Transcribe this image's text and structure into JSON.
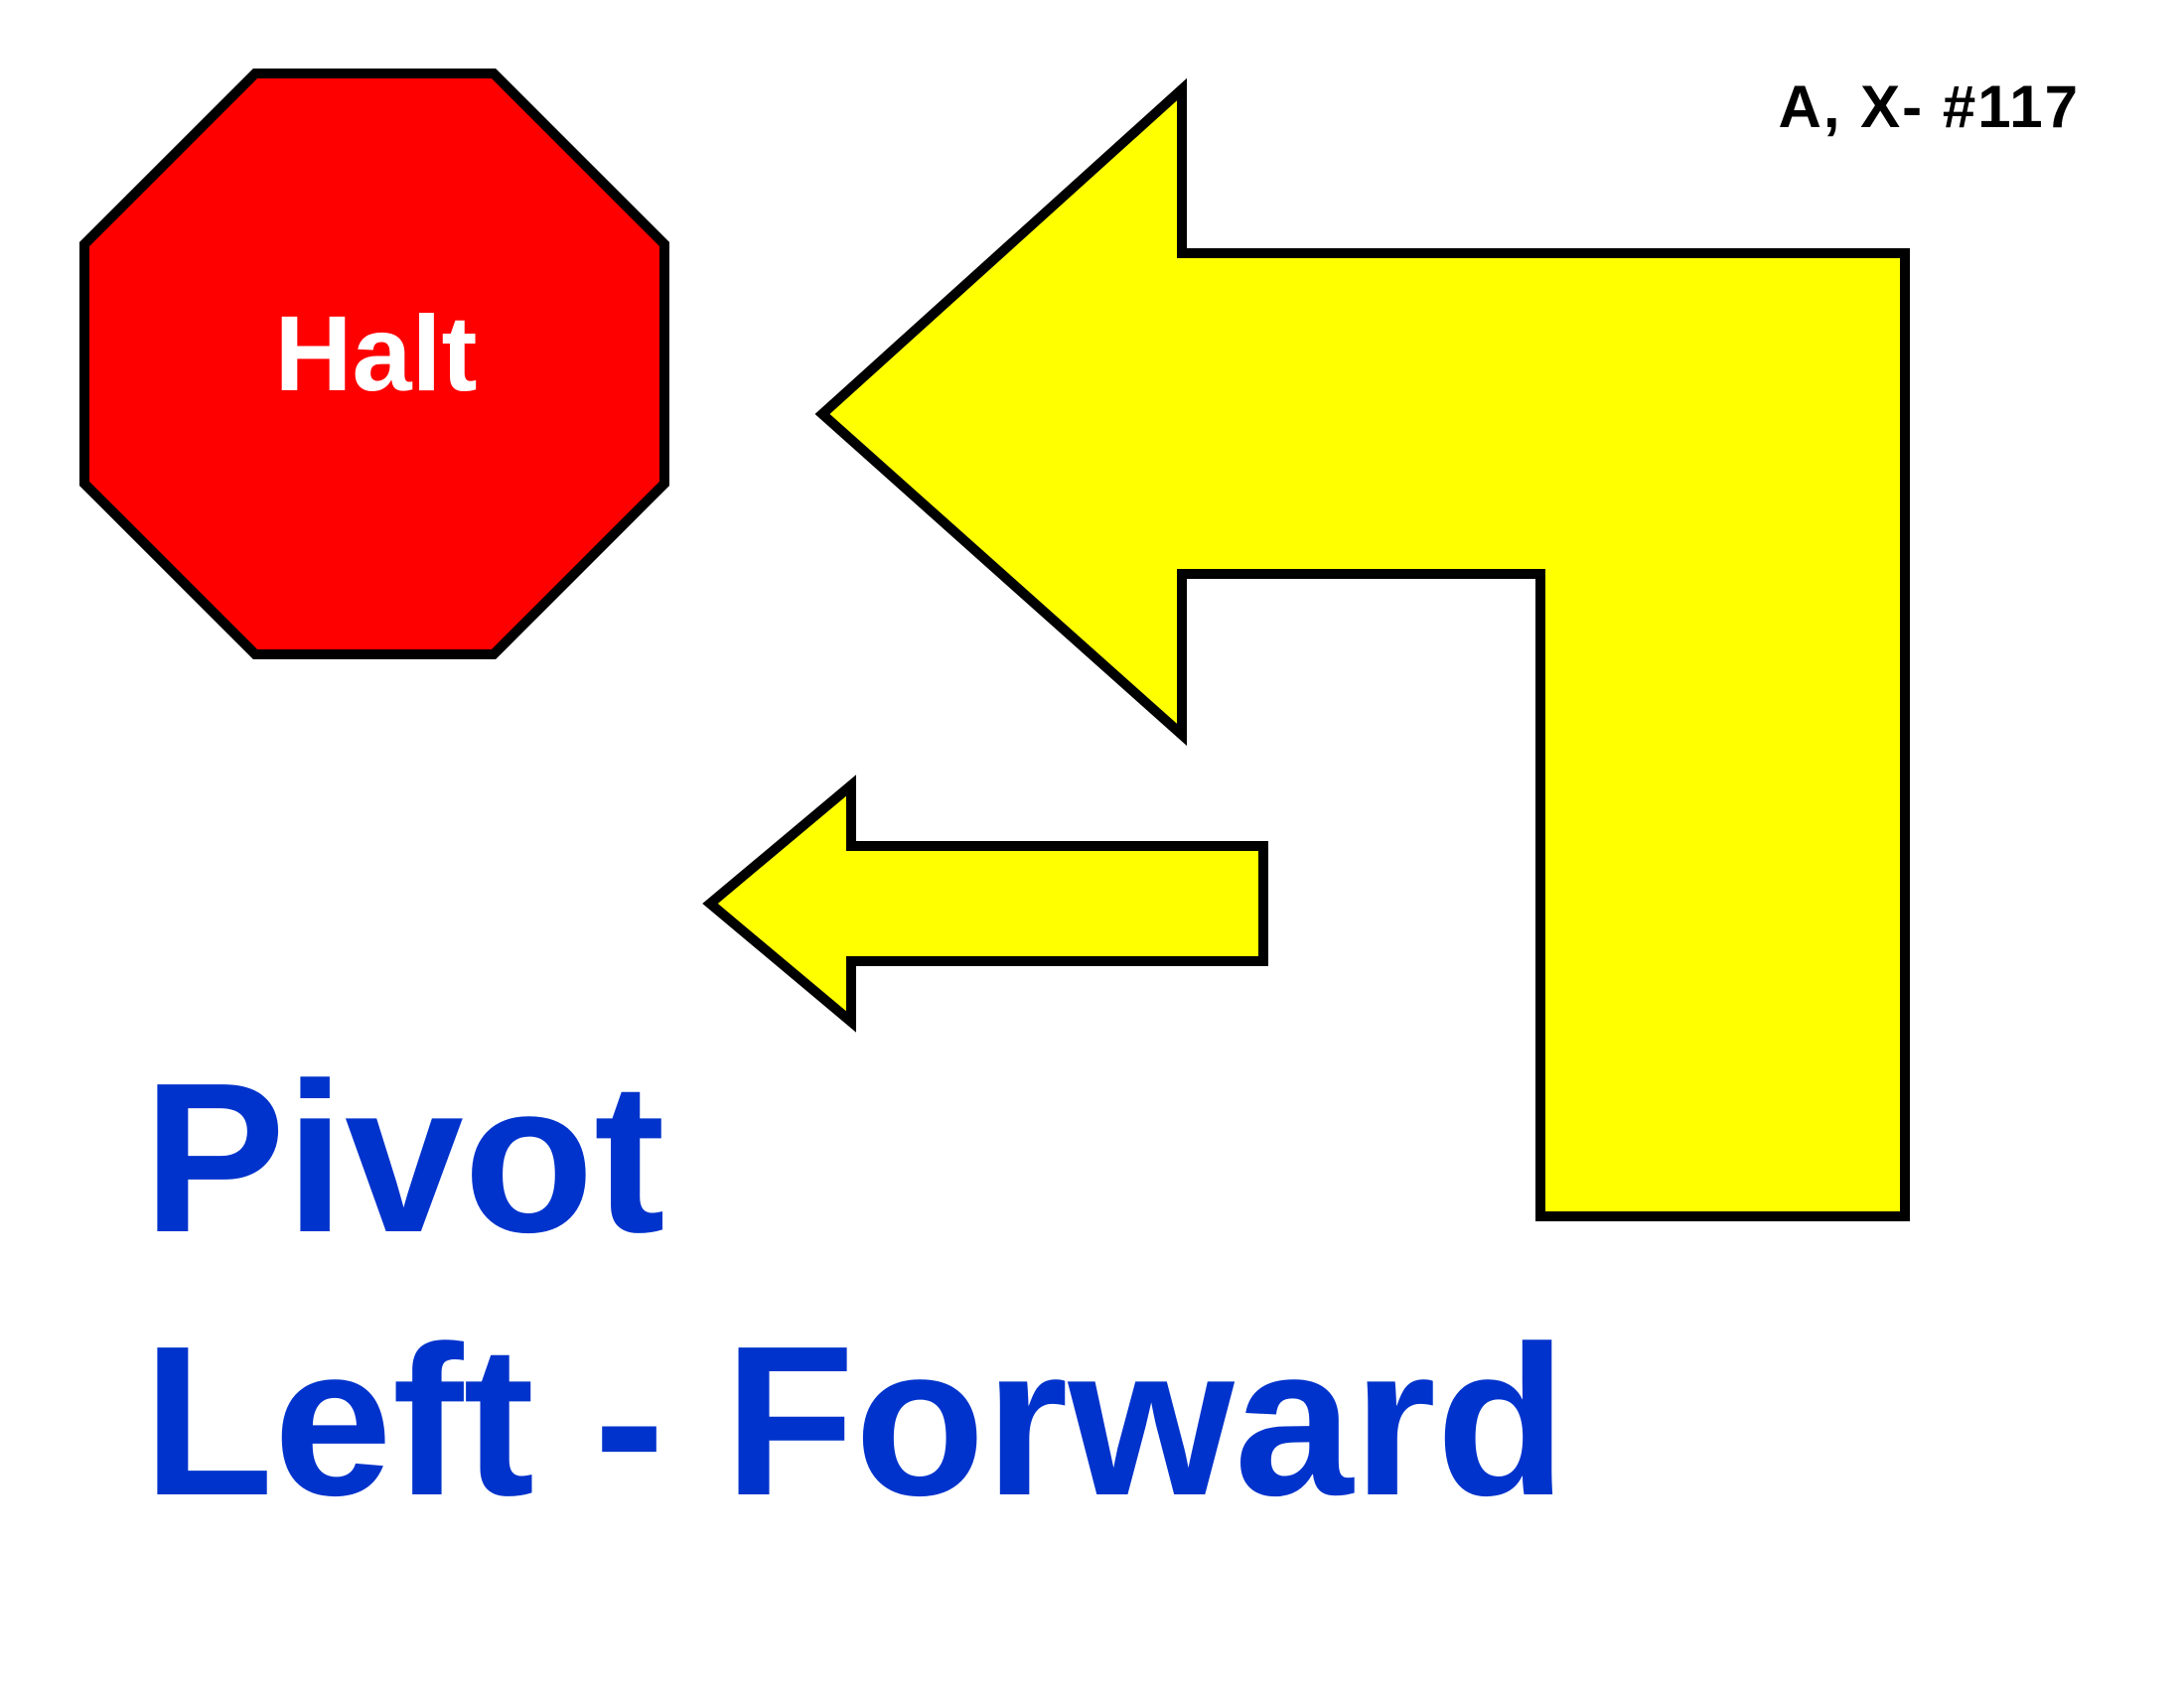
{
  "sign": {
    "code": "A, X- #117",
    "stop_label": "Halt",
    "title_line_1": "Pivot",
    "title_line_2": "Left - Forward"
  },
  "colors": {
    "stop_fill": "#ff0000",
    "arrow_fill": "#ffff00",
    "outline": "#000000",
    "title_text": "#0033cc",
    "stop_text": "#ffffff",
    "background": "#ffffff"
  },
  "icons": {
    "stop": "octagon-stop-icon",
    "pivot_turn": "left-turn-arrow-icon",
    "forward": "left-arrow-icon"
  }
}
